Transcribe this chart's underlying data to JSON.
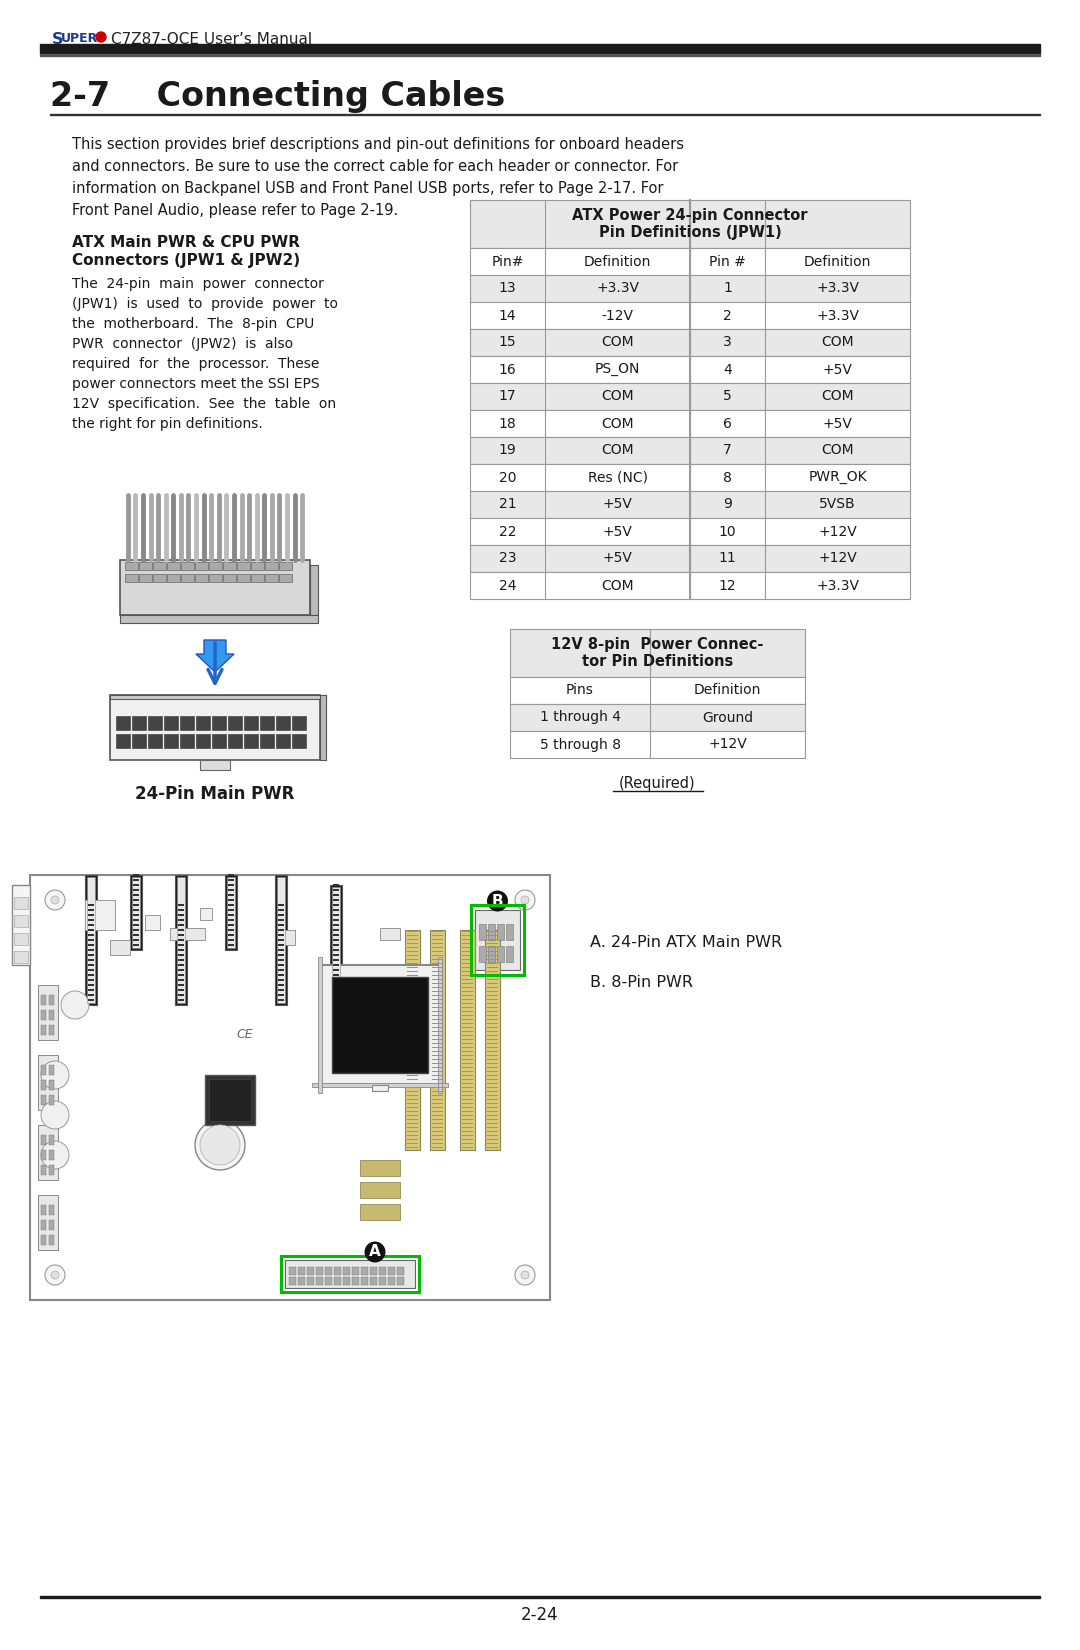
{
  "page_bg": "#ffffff",
  "header_text": "C7Z87-OCE User’s Manual",
  "header_super_color": "#1a3a8c",
  "header_dot_color": "#cc0000",
  "section_title": "2-7    Connecting Cables",
  "body_text_lines": [
    "This section provides brief descriptions and pin-out definitions for onboard headers",
    "and connectors. Be sure to use the correct cable for each header or connector. For",
    "information on Backpanel USB and Front Panel USB ports, refer to Page 2-17. For",
    "Front Panel Audio, please refer to Page 2-19."
  ],
  "left_section_title_line1": "ATX Main PWR & CPU PWR",
  "left_section_title_line2": "Connectors (JPW1 & JPW2)",
  "left_body_lines": [
    "The  24-pin  main  power  connector",
    "(JPW1)  is  used  to  provide  power  to",
    "the  motherboard.  The  8-pin  CPU",
    "PWR  connector  (JPW2)  is  also",
    "required  for  the  processor.  These",
    "power connectors meet the SSI EPS",
    "12V  specification.  See  the  table  on",
    "the right for pin definitions."
  ],
  "caption_24pin": "24-Pin Main PWR",
  "atx_table_title": "ATX Power 24-pin Connector\nPin Definitions (JPW1)",
  "atx_col_headers": [
    "Pin#",
    "Definition",
    "Pin #",
    "Definition"
  ],
  "atx_rows": [
    [
      "13",
      "+3.3V",
      "1",
      "+3.3V"
    ],
    [
      "14",
      "-12V",
      "2",
      "+3.3V"
    ],
    [
      "15",
      "COM",
      "3",
      "COM"
    ],
    [
      "16",
      "PS_ON",
      "4",
      "+5V"
    ],
    [
      "17",
      "COM",
      "5",
      "COM"
    ],
    [
      "18",
      "COM",
      "6",
      "+5V"
    ],
    [
      "19",
      "COM",
      "7",
      "COM"
    ],
    [
      "20",
      "Res (NC)",
      "8",
      "PWR_OK"
    ],
    [
      "21",
      "+5V",
      "9",
      "5VSB"
    ],
    [
      "22",
      "+5V",
      "10",
      "+12V"
    ],
    [
      "23",
      "+5V",
      "11",
      "+12V"
    ],
    [
      "24",
      "COM",
      "12",
      "+3.3V"
    ]
  ],
  "jpw2_table_title": "12V 8-pin  Power Connec-\ntor Pin Definitions",
  "jpw2_col_headers": [
    "Pins",
    "Definition"
  ],
  "jpw2_rows": [
    [
      "1 through 4",
      "Ground"
    ],
    [
      "5 through 8",
      "+12V"
    ]
  ],
  "required_text": "(Required)",
  "label_a": "A. 24-Pin ATX Main PWR",
  "label_b": "B. 8-Pin PWR",
  "footer_text": "2-24",
  "table_header_bg": "#e8e8e8",
  "table_alt_row_bg": "#e8e8e8",
  "table_white_row_bg": "#ffffff",
  "table_border_color": "#999999",
  "divider_dark": "#1a1a1a",
  "divider_mid": "#555555",
  "green_box": "#00bb00",
  "mb_outline": "#aaaaaa",
  "mb_fill": "#ffffff"
}
